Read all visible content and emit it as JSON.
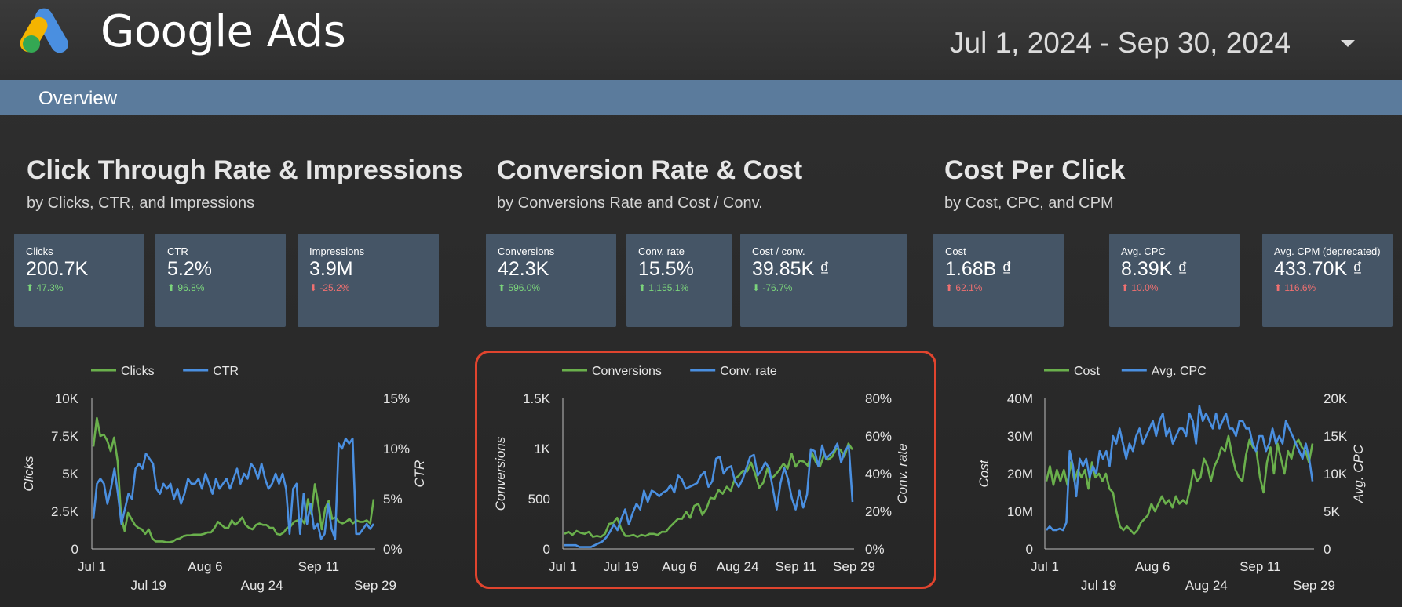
{
  "header": {
    "brand": "Google Ads",
    "date_range": "Jul 1, 2024 - Sep 30, 2024",
    "overview": "Overview"
  },
  "sections": [
    {
      "title": "Click Through Rate & Impressions",
      "subtitle": "by Clicks, CTR, and Impressions",
      "cards": [
        {
          "label": "Clicks",
          "value": "200.7K",
          "change": "⬆ 47.3%",
          "tone": "up-good"
        },
        {
          "label": "CTR",
          "value": "5.2%",
          "change": "⬆ 96.8%",
          "tone": "up-good"
        },
        {
          "label": "Impressions",
          "value": "3.9M",
          "change": "⬇ -25.2%",
          "tone": "bad"
        }
      ]
    },
    {
      "title": "Conversion Rate & Cost",
      "subtitle": "by Conversions Rate and Cost / Conv.",
      "cards": [
        {
          "label": "Conversions",
          "value": "42.3K",
          "change": "⬆ 596.0%",
          "tone": "up-good"
        },
        {
          "label": "Conv. rate",
          "value": "15.5%",
          "change": "⬆ 1,155.1%",
          "tone": "up-good"
        },
        {
          "label": "Cost / conv.",
          "value": "39.85K ₫",
          "change": "⬇ -76.7%",
          "tone": "down-good"
        }
      ]
    },
    {
      "title": "Cost Per Click",
      "subtitle": "by Cost, CPC, and CPM",
      "cards": [
        {
          "label": "Cost",
          "value": "1.68B ₫",
          "change": "⬆ 62.1%",
          "tone": "bad"
        },
        {
          "label": "Avg. CPC",
          "value": "8.39K ₫",
          "change": "⬆ 10.0%",
          "tone": "bad"
        },
        {
          "label": "Avg. CPM (deprecated)",
          "value": "433.70K ₫",
          "change": "⬆ 116.6%",
          "tone": "bad"
        }
      ]
    }
  ],
  "colors": {
    "green": "#6ab04c",
    "blue": "#4a8fe0",
    "highlight": "#e0442e"
  },
  "chart_data": [
    {
      "type": "line",
      "legend": [
        "Clicks",
        "CTR"
      ],
      "legend_placement": "top",
      "y_left": {
        "label": "Clicks",
        "ticks": [
          "0",
          "2.5K",
          "5K",
          "7.5K",
          "10K"
        ],
        "range": [
          0,
          10000
        ]
      },
      "y_right": {
        "label": "CTR",
        "ticks": [
          "0%",
          "5%",
          "10%",
          "15%"
        ],
        "range": [
          0,
          15
        ]
      },
      "x_ticks_top": [
        "Jul 1",
        "Aug 6",
        "Sep 11"
      ],
      "x_ticks_bottom": [
        "Jul 19",
        "Aug 24",
        "Sep 29"
      ],
      "series": [
        {
          "name": "Clicks",
          "axis": "left",
          "values": [
            6800,
            8700,
            7500,
            7600,
            7200,
            6500,
            7400,
            5800,
            2200,
            1200,
            2400,
            2000,
            1600,
            1400,
            1300,
            1000,
            1300,
            700,
            500,
            500,
            500,
            450,
            450,
            500,
            650,
            700,
            850,
            900,
            900,
            950,
            950,
            950,
            1000,
            1100,
            1100,
            1400,
            1800,
            1600,
            1400,
            1400,
            1900,
            1600,
            1800,
            2100,
            1600,
            1400,
            1300,
            1600,
            1700,
            1600,
            1600,
            1400,
            1400,
            1000,
            950,
            1100,
            1400,
            1500,
            1800,
            1900,
            2000,
            1700,
            3300,
            2300,
            4300,
            3000,
            1300,
            2700,
            3200,
            2000,
            2100,
            1800,
            1700,
            1800,
            2000,
            1700,
            1900,
            1800,
            1800,
            1900,
            1700,
            3300
          ]
        },
        {
          "name": "CTR",
          "axis": "right",
          "values": [
            3.0,
            6.5,
            7.0,
            6.5,
            4.5,
            6.0,
            8.0,
            5.5,
            2.5,
            4.0,
            5.5,
            5.0,
            8.0,
            8.5,
            8.0,
            9.5,
            9.0,
            8.5,
            6.0,
            5.5,
            6.5,
            6.0,
            6.5,
            5.0,
            6.0,
            4.5,
            5.5,
            7.0,
            6.5,
            6.5,
            7.0,
            6.0,
            7.5,
            6.5,
            5.5,
            7.0,
            6.0,
            6.5,
            7.0,
            6.0,
            7.0,
            8.0,
            6.5,
            7.5,
            7.0,
            8.5,
            8.0,
            7.0,
            8.5,
            7.0,
            6.0,
            6.5,
            7.5,
            6.5,
            7.5,
            6.0,
            1.5,
            6.0,
            6.5,
            1.5,
            5.5,
            2.5,
            4.5,
            2.0,
            2.5,
            1.0,
            1.5,
            4.5,
            2.0,
            1.0,
            10.5,
            10.0,
            11.0,
            10.5,
            11.0,
            1.5,
            1.5,
            2.0,
            2.5,
            2.0,
            2.5
          ]
        }
      ]
    },
    {
      "type": "line",
      "legend": [
        "Conversions",
        "Conv. rate"
      ],
      "legend_placement": "top",
      "y_left": {
        "label": "Conversions",
        "ticks": [
          "0",
          "500",
          "1K",
          "1.5K"
        ],
        "range": [
          0,
          1500
        ]
      },
      "y_right": {
        "label": "Conv. rate",
        "ticks": [
          "0%",
          "20%",
          "40%",
          "60%",
          "80%"
        ],
        "range": [
          0,
          80
        ]
      },
      "x_ticks": [
        "Jul 1",
        "Jul 19",
        "Aug 6",
        "Aug 24",
        "Sep 11",
        "Sep 29"
      ],
      "series": [
        {
          "name": "Conversions",
          "axis": "left",
          "values": [
            150,
            170,
            140,
            180,
            160,
            150,
            170,
            120,
            130,
            120,
            150,
            250,
            260,
            310,
            200,
            130,
            130,
            140,
            120,
            140,
            130,
            150,
            150,
            140,
            170,
            170,
            220,
            260,
            300,
            300,
            370,
            310,
            430,
            450,
            340,
            400,
            510,
            500,
            590,
            550,
            620,
            580,
            700,
            730,
            780,
            770,
            860,
            750,
            610,
            660,
            800,
            700,
            740,
            790,
            850,
            800,
            950,
            820,
            880,
            870,
            830,
            960,
            860,
            820,
            940,
            890,
            920,
            1000,
            990,
            920,
            1050,
            990
          ]
        },
        {
          "name": "Conv. rate",
          "axis": "right",
          "values": [
            2,
            2,
            2,
            2,
            1,
            1,
            1,
            1,
            2,
            3,
            4,
            6,
            9,
            13,
            10,
            16,
            21,
            13,
            19,
            24,
            21,
            31,
            25,
            31,
            30,
            28,
            30,
            31,
            34,
            30,
            39,
            37,
            32,
            33,
            34,
            35,
            39,
            41,
            33,
            36,
            48,
            49,
            40,
            43,
            44,
            36,
            33,
            37,
            43,
            49,
            50,
            39,
            42,
            46,
            43,
            32,
            21,
            35,
            43,
            37,
            27,
            21,
            31,
            22,
            29,
            53,
            52,
            44,
            55,
            48,
            50,
            52,
            56,
            46,
            52,
            55,
            25
          ]
        }
      ]
    },
    {
      "type": "line",
      "legend": [
        "Cost",
        "Avg. CPC"
      ],
      "legend_placement": "top",
      "y_left": {
        "label": "Cost",
        "ticks": [
          "0",
          "10M",
          "20M",
          "30M",
          "40M"
        ],
        "range": [
          0,
          40000000
        ]
      },
      "y_right": {
        "label": "Avg. CPC",
        "ticks": [
          "0",
          "5K",
          "10K",
          "15K",
          "20K"
        ],
        "range": [
          0,
          20000
        ]
      },
      "x_ticks_top": [
        "Jul 1",
        "Aug 6",
        "Sep 11"
      ],
      "x_ticks_bottom": [
        "Jul 19",
        "Aug 24",
        "Sep 29"
      ],
      "series": [
        {
          "name": "Cost",
          "axis": "left",
          "values": [
            18000000,
            22000000,
            17000000,
            21000000,
            18000000,
            21000000,
            17000000,
            23000000,
            18000000,
            21000000,
            19000000,
            21000000,
            16000000,
            23000000,
            19000000,
            20000000,
            18000000,
            20000000,
            16000000,
            15000000,
            10000000,
            6000000,
            5000000,
            6000000,
            5000000,
            4000000,
            5000000,
            7000000,
            8000000,
            9000000,
            12000000,
            10000000,
            12000000,
            14000000,
            12000000,
            13000000,
            11000000,
            14000000,
            12000000,
            13000000,
            12000000,
            16000000,
            21000000,
            18000000,
            19000000,
            24000000,
            22000000,
            18000000,
            22000000,
            24000000,
            27000000,
            26000000,
            30000000,
            25000000,
            21000000,
            19000000,
            18000000,
            25000000,
            29000000,
            27000000,
            26000000,
            19000000,
            15000000,
            23000000,
            27000000,
            20000000,
            28000000,
            24000000,
            20000000,
            26000000,
            24000000,
            28000000,
            29000000,
            27000000,
            26000000,
            23000000,
            28000000
          ]
        },
        {
          "name": "Avg. CPC",
          "axis": "right",
          "values": [
            2500,
            3000,
            2500,
            2500,
            2700,
            2500,
            3500,
            13000,
            11000,
            7000,
            12000,
            11000,
            12000,
            9500,
            11000,
            10000,
            13000,
            12000,
            13000,
            11000,
            15000,
            14000,
            16000,
            14000,
            12000,
            14000,
            13000,
            15000,
            16000,
            14000,
            15000,
            16000,
            17000,
            15000,
            17000,
            18000,
            15000,
            16000,
            14000,
            15000,
            16000,
            16000,
            15000,
            18000,
            17000,
            14000,
            19000,
            17000,
            18000,
            17000,
            16000,
            18000,
            16000,
            17000,
            18000,
            16000,
            16000,
            15000,
            17000,
            17000,
            16000,
            16000,
            14000,
            13000,
            15000,
            15000,
            13000,
            14000,
            16000,
            14000,
            15000,
            14000,
            17000,
            16000,
            15000,
            14000,
            13000,
            12000,
            14000,
            12000,
            9000
          ]
        }
      ]
    }
  ]
}
